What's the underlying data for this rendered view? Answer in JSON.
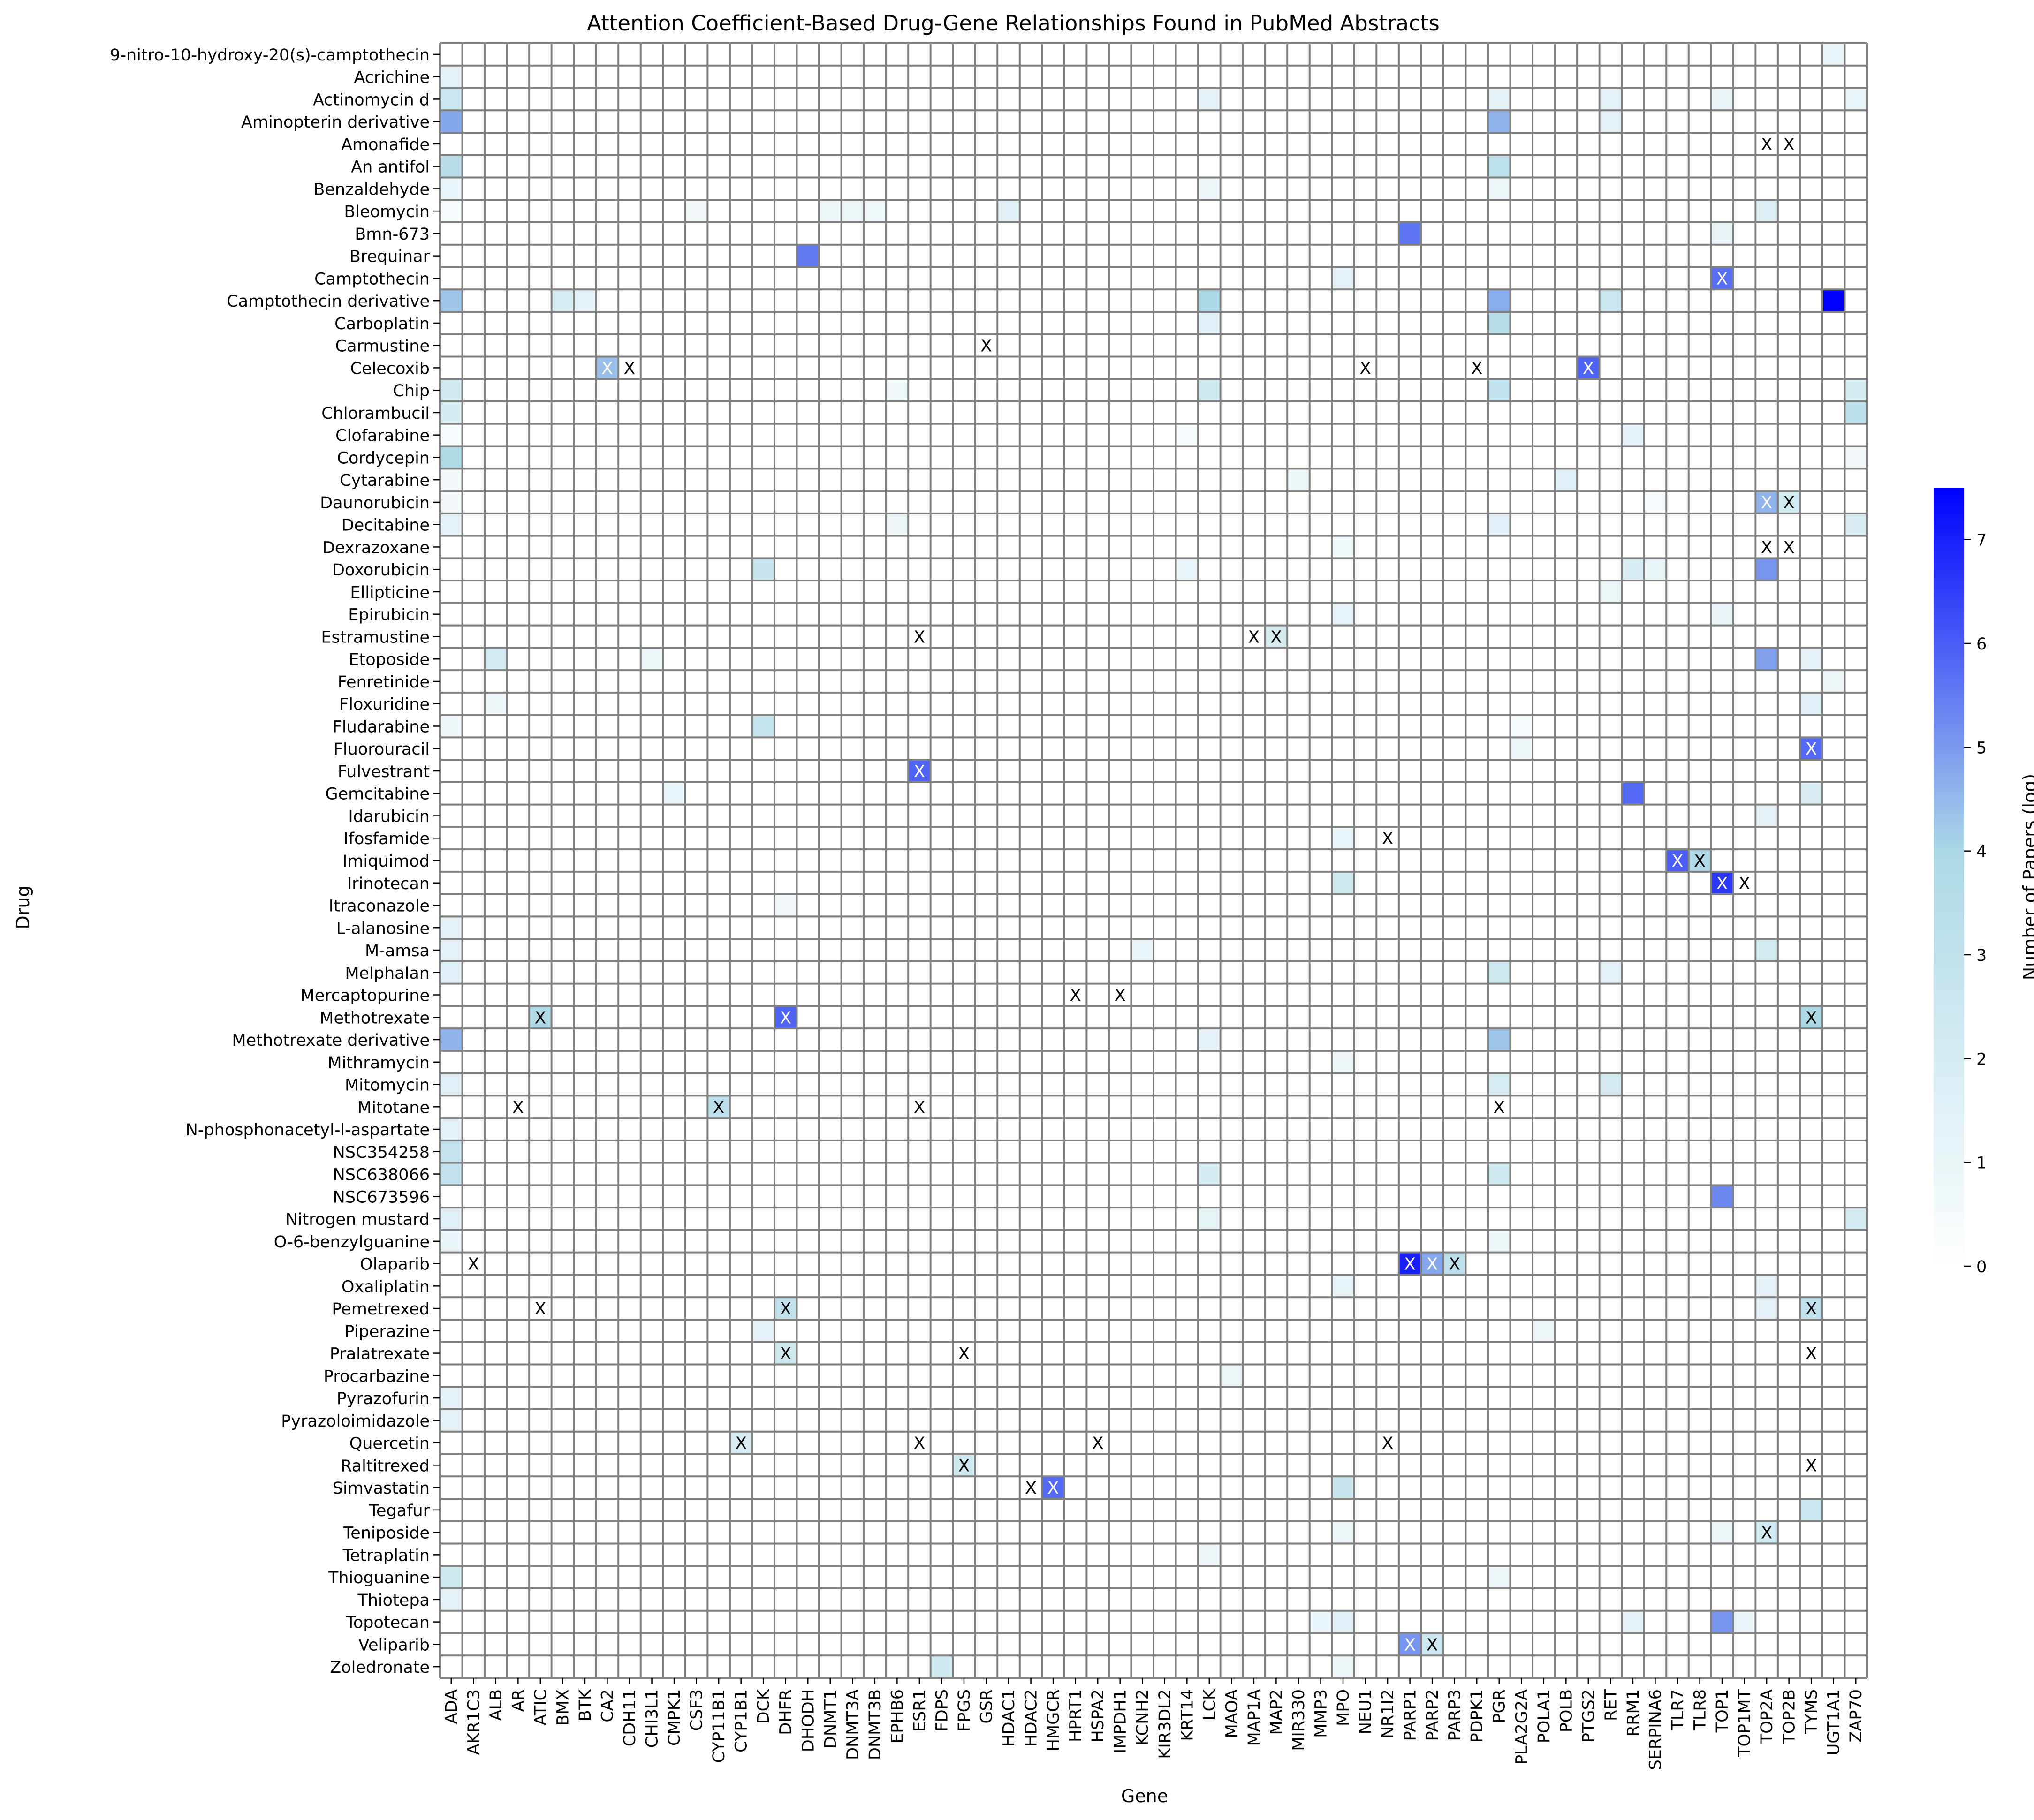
{
  "chart_data": {
    "type": "heatmap",
    "title": "Attention Coefficient-Based Drug-Gene Relationships Found in PubMed Abstracts",
    "xlabel": "Gene",
    "ylabel": "Drug",
    "colorbar": {
      "label": "Number of Papers (log)",
      "range": [
        0,
        7.5
      ],
      "ticks": [
        "0",
        "1",
        "2",
        "3",
        "4",
        "5",
        "6",
        "7"
      ],
      "colors": [
        "#ffffff",
        "#add8e6",
        "#0000ff"
      ],
      "placement": "right"
    },
    "grid": true,
    "genes": [
      "ADA",
      "AKR1C3",
      "ALB",
      "AR",
      "ATIC",
      "BMX",
      "BTK",
      "CA2",
      "CDH11",
      "CHI3L1",
      "CMPK1",
      "CSF3",
      "CYP11B1",
      "CYP1B1",
      "DCK",
      "DHFR",
      "DHODH",
      "DNMT1",
      "DNMT3A",
      "DNMT3B",
      "EPHB6",
      "ESR1",
      "FDPS",
      "FPGS",
      "GSR",
      "HDAC1",
      "HDAC2",
      "HMGCR",
      "HPRT1",
      "HSPA2",
      "IMPDH1",
      "KCNH2",
      "KIR3DL2",
      "KRT14",
      "LCK",
      "MAOA",
      "MAP1A",
      "MAP2",
      "MIR330",
      "MMP3",
      "MPO",
      "NEU1",
      "NR1I2",
      "PARP1",
      "PARP2",
      "PARP3",
      "PDPK1",
      "PGR",
      "PLA2G2A",
      "POLA1",
      "POLB",
      "PTGS2",
      "RET",
      "RRM1",
      "SERPINA6",
      "TLR7",
      "TLR8",
      "TOP1",
      "TOP1MT",
      "TOP2A",
      "TOP2B",
      "TYMS",
      "UGT1A1",
      "ZAP70"
    ],
    "drugs": [
      "9-nitro-10-hydroxy-20(s)-camptothecin",
      "Acrichine",
      "Actinomycin d",
      "Aminopterin derivative",
      "Amonafide",
      "An antifol",
      "Benzaldehyde",
      "Bleomycin",
      "Bmn-673",
      "Brequinar",
      "Camptothecin",
      "Camptothecin derivative",
      "Carboplatin",
      "Carmustine",
      "Celecoxib",
      "Chip",
      "Chlorambucil",
      "Clofarabine",
      "Cordycepin",
      "Cytarabine",
      "Daunorubicin",
      "Decitabine",
      "Dexrazoxane",
      "Doxorubicin",
      "Ellipticine",
      "Epirubicin",
      "Estramustine",
      "Etoposide",
      "Fenretinide",
      "Floxuridine",
      "Fludarabine",
      "Fluorouracil",
      "Fulvestrant",
      "Gemcitabine",
      "Idarubicin",
      "Ifosfamide",
      "Imiquimod",
      "Irinotecan",
      "Itraconazole",
      "L-alanosine",
      "M-amsa",
      "Melphalan",
      "Mercaptopurine",
      "Methotrexate",
      "Methotrexate derivative",
      "Mithramycin",
      "Mitomycin",
      "Mitotane",
      "N-phosphonacetyl-l-aspartate",
      "NSC354258",
      "NSC638066",
      "NSC673596",
      "Nitrogen mustard",
      "O-6-benzylguanine",
      "Olaparib",
      "Oxaliplatin",
      "Pemetrexed",
      "Piperazine",
      "Pralatrexate",
      "Procarbazine",
      "Pyrazofurin",
      "Pyrazoloimidazole",
      "Quercetin",
      "Raltitrexed",
      "Simvastatin",
      "Tegafur",
      "Teniposide",
      "Tetraplatin",
      "Thioguanine",
      "Thiotepa",
      "Topotecan",
      "Veliparib",
      "Zoledronate"
    ],
    "cells": [
      [
        "9-nitro-10-hydroxy-20(s)-camptothecin",
        "UGT1A1",
        1.0,
        false
      ],
      [
        "Acrichine",
        "ADA",
        1.3,
        false
      ],
      [
        "Actinomycin d",
        "ADA",
        2.6,
        false
      ],
      [
        "Actinomycin d",
        "LCK",
        1.3,
        false
      ],
      [
        "Actinomycin d",
        "PGR",
        1.3,
        false
      ],
      [
        "Actinomycin d",
        "RET",
        1.3,
        false
      ],
      [
        "Actinomycin d",
        "TOP1",
        1.0,
        false
      ],
      [
        "Actinomycin d",
        "ZAP70",
        1.0,
        false
      ],
      [
        "Aminopterin derivative",
        "ADA",
        4.8,
        false
      ],
      [
        "Aminopterin derivative",
        "PGR",
        4.6,
        false
      ],
      [
        "Aminopterin derivative",
        "RET",
        1.3,
        false
      ],
      [
        "Amonafide",
        "TOP2A",
        0,
        true
      ],
      [
        "Amonafide",
        "TOP2B",
        0,
        true
      ],
      [
        "An antifol",
        "ADA",
        3.4,
        false
      ],
      [
        "An antifol",
        "PGR",
        3.1,
        false
      ],
      [
        "Benzaldehyde",
        "ADA",
        1.0,
        false
      ],
      [
        "Benzaldehyde",
        "LCK",
        0.9,
        false
      ],
      [
        "Benzaldehyde",
        "PGR",
        0.9,
        false
      ],
      [
        "Bleomycin",
        "ADA",
        0.5,
        false
      ],
      [
        "Bleomycin",
        "CSF3",
        0.6,
        false
      ],
      [
        "Bleomycin",
        "DNMT1",
        0.9,
        false
      ],
      [
        "Bleomycin",
        "DNMT3A",
        0.9,
        false
      ],
      [
        "Bleomycin",
        "DNMT3B",
        0.7,
        false
      ],
      [
        "Bleomycin",
        "HDAC1",
        1.5,
        false
      ],
      [
        "Bleomycin",
        "TOP2A",
        1.7,
        false
      ],
      [
        "Bmn-673",
        "PARP1",
        5.6,
        false
      ],
      [
        "Bmn-673",
        "TOP1",
        1.1,
        false
      ],
      [
        "Brequinar",
        "DHODH",
        5.5,
        false
      ],
      [
        "Camptothecin",
        "MPO",
        1.3,
        false
      ],
      [
        "Camptothecin",
        "TOP1",
        5.7,
        true
      ],
      [
        "Camptothecin derivative",
        "ADA",
        4.3,
        false
      ],
      [
        "Camptothecin derivative",
        "BMX",
        1.9,
        false
      ],
      [
        "Camptothecin derivative",
        "BTK",
        1.3,
        false
      ],
      [
        "Camptothecin derivative",
        "LCK",
        4.0,
        false
      ],
      [
        "Camptothecin derivative",
        "PGR",
        4.7,
        false
      ],
      [
        "Camptothecin derivative",
        "RET",
        2.6,
        false
      ],
      [
        "Camptothecin derivative",
        "UGT1A1",
        7.5,
        false
      ],
      [
        "Carboplatin",
        "LCK",
        1.5,
        false
      ],
      [
        "Carboplatin",
        "PGR",
        3.5,
        false
      ],
      [
        "Carmustine",
        "GSR",
        0,
        true
      ],
      [
        "Celecoxib",
        "CA2",
        4.4,
        true
      ],
      [
        "Celecoxib",
        "CDH11",
        0,
        true
      ],
      [
        "Celecoxib",
        "NEU1",
        0,
        true
      ],
      [
        "Celecoxib",
        "PDPK1",
        0,
        true
      ],
      [
        "Celecoxib",
        "PTGS2",
        5.9,
        true
      ],
      [
        "Chip",
        "ADA",
        2.3,
        false
      ],
      [
        "Chip",
        "EPHB6",
        0.7,
        false
      ],
      [
        "Chip",
        "LCK",
        2.4,
        false
      ],
      [
        "Chip",
        "PGR",
        3.0,
        false
      ],
      [
        "Chip",
        "ZAP70",
        2.0,
        false
      ],
      [
        "Chlorambucil",
        "ADA",
        2.0,
        false
      ],
      [
        "Chlorambucil",
        "ZAP70",
        3.3,
        false
      ],
      [
        "Clofarabine",
        "ADA",
        0.5,
        false
      ],
      [
        "Clofarabine",
        "KRT14",
        0.5,
        false
      ],
      [
        "Clofarabine",
        "RRM1",
        1.3,
        false
      ],
      [
        "Cordycepin",
        "ADA",
        3.8,
        false
      ],
      [
        "Cordycepin",
        "ZAP70",
        0.6,
        false
      ],
      [
        "Cytarabine",
        "ADA",
        0.6,
        false
      ],
      [
        "Cytarabine",
        "MIR330",
        0.8,
        false
      ],
      [
        "Cytarabine",
        "POLB",
        1.6,
        false
      ],
      [
        "Daunorubicin",
        "ADA",
        0.6,
        false
      ],
      [
        "Daunorubicin",
        "SERPINA6",
        0.5,
        false
      ],
      [
        "Daunorubicin",
        "TOP2A",
        4.6,
        true
      ],
      [
        "Daunorubicin",
        "TOP2B",
        2.2,
        true
      ],
      [
        "Decitabine",
        "ADA",
        1.3,
        false
      ],
      [
        "Decitabine",
        "EPHB6",
        0.8,
        false
      ],
      [
        "Decitabine",
        "PGR",
        1.5,
        false
      ],
      [
        "Decitabine",
        "ZAP70",
        1.8,
        false
      ],
      [
        "Dexrazoxane",
        "MPO",
        0.7,
        false
      ],
      [
        "Dexrazoxane",
        "TOP2A",
        0,
        true
      ],
      [
        "Dexrazoxane",
        "TOP2B",
        0,
        true
      ],
      [
        "Doxorubicin",
        "DCK",
        2.7,
        false
      ],
      [
        "Doxorubicin",
        "KRT14",
        1.0,
        false
      ],
      [
        "Doxorubicin",
        "RRM1",
        1.9,
        false
      ],
      [
        "Doxorubicin",
        "SERPINA6",
        1.0,
        false
      ],
      [
        "Doxorubicin",
        "TOP2A",
        5.1,
        false
      ],
      [
        "Ellipticine",
        "RET",
        0.9,
        false
      ],
      [
        "Epirubicin",
        "MPO",
        1.2,
        false
      ],
      [
        "Epirubicin",
        "TOP1",
        1.0,
        false
      ],
      [
        "Estramustine",
        "ESR1",
        0,
        true
      ],
      [
        "Estramustine",
        "MAP1A",
        0,
        true
      ],
      [
        "Estramustine",
        "MAP2",
        2.0,
        true
      ],
      [
        "Etoposide",
        "ALB",
        2.2,
        false
      ],
      [
        "Etoposide",
        "CHI3L1",
        0.9,
        false
      ],
      [
        "Etoposide",
        "TOP2A",
        4.9,
        false
      ],
      [
        "Etoposide",
        "TYMS",
        1.3,
        false
      ],
      [
        "Fenretinide",
        "UGT1A1",
        0.9,
        false
      ],
      [
        "Floxuridine",
        "ALB",
        0.8,
        false
      ],
      [
        "Floxuridine",
        "TYMS",
        1.5,
        false
      ],
      [
        "Fludarabine",
        "ADA",
        0.8,
        false
      ],
      [
        "Fludarabine",
        "DCK",
        2.9,
        false
      ],
      [
        "Fludarabine",
        "PLA2G2A",
        0.5,
        false
      ],
      [
        "Fluorouracil",
        "PLA2G2A",
        0.9,
        false
      ],
      [
        "Fluorouracil",
        "TYMS",
        5.8,
        true
      ],
      [
        "Fulvestrant",
        "ESR1",
        5.9,
        true
      ],
      [
        "Gemcitabine",
        "CMPK1",
        1.0,
        false
      ],
      [
        "Gemcitabine",
        "RRM1",
        5.8,
        false
      ],
      [
        "Gemcitabine",
        "TYMS",
        1.8,
        false
      ],
      [
        "Idarubicin",
        "TOP2A",
        1.3,
        false
      ],
      [
        "Ifosfamide",
        "MPO",
        1.0,
        false
      ],
      [
        "Ifosfamide",
        "NR1I2",
        0,
        true
      ],
      [
        "Imiquimod",
        "TLR7",
        6.0,
        true
      ],
      [
        "Imiquimod",
        "TLR8",
        3.9,
        true
      ],
      [
        "Irinotecan",
        "MPO",
        2.4,
        false
      ],
      [
        "Irinotecan",
        "TOP1",
        6.6,
        true
      ],
      [
        "Irinotecan",
        "TOP1MT",
        0,
        true
      ],
      [
        "Itraconazole",
        "DHFR",
        0.6,
        false
      ],
      [
        "L-alanosine",
        "ADA",
        1.3,
        false
      ],
      [
        "M-amsa",
        "ADA",
        1.3,
        false
      ],
      [
        "M-amsa",
        "KCNH2",
        1.0,
        false
      ],
      [
        "M-amsa",
        "TOP2A",
        2.1,
        false
      ],
      [
        "Melphalan",
        "ADA",
        1.5,
        false
      ],
      [
        "Melphalan",
        "PGR",
        2.4,
        false
      ],
      [
        "Melphalan",
        "RET",
        1.3,
        false
      ],
      [
        "Mercaptopurine",
        "HPRT1",
        0,
        true
      ],
      [
        "Mercaptopurine",
        "IMPDH1",
        0,
        true
      ],
      [
        "Methotrexate",
        "ATIC",
        3.8,
        true
      ],
      [
        "Methotrexate",
        "DHFR",
        5.9,
        true
      ],
      [
        "Methotrexate",
        "TYMS",
        4.0,
        true
      ],
      [
        "Methotrexate derivative",
        "ADA",
        4.6,
        false
      ],
      [
        "Methotrexate derivative",
        "LCK",
        1.3,
        false
      ],
      [
        "Methotrexate derivative",
        "PGR",
        4.3,
        false
      ],
      [
        "Mithramycin",
        "MPO",
        0.8,
        false
      ],
      [
        "Mitomycin",
        "ADA",
        1.5,
        false
      ],
      [
        "Mitomycin",
        "PGR",
        1.9,
        false
      ],
      [
        "Mitomycin",
        "RET",
        2.0,
        false
      ],
      [
        "Mitotane",
        "AR",
        0,
        true
      ],
      [
        "Mitotane",
        "CYP11B1",
        3.3,
        true
      ],
      [
        "Mitotane",
        "ESR1",
        0,
        true
      ],
      [
        "Mitotane",
        "PGR",
        0,
        true
      ],
      [
        "N-phosphonacetyl-l-aspartate",
        "ADA",
        1.3,
        false
      ],
      [
        "NSC354258",
        "ADA",
        2.8,
        false
      ],
      [
        "NSC638066",
        "ADA",
        3.0,
        false
      ],
      [
        "NSC638066",
        "LCK",
        2.0,
        false
      ],
      [
        "NSC638066",
        "PGR",
        2.4,
        false
      ],
      [
        "NSC673596",
        "TOP1",
        5.3,
        false
      ],
      [
        "Nitrogen mustard",
        "ADA",
        1.5,
        false
      ],
      [
        "Nitrogen mustard",
        "LCK",
        1.2,
        false
      ],
      [
        "Nitrogen mustard",
        "ZAP70",
        2.0,
        false
      ],
      [
        "O-6-benzylguanine",
        "ADA",
        1.0,
        false
      ],
      [
        "O-6-benzylguanine",
        "PGR",
        0.9,
        false
      ],
      [
        "Olaparib",
        "AKR1C3",
        0,
        true
      ],
      [
        "Olaparib",
        "PARP1",
        7.0,
        true
      ],
      [
        "Olaparib",
        "PARP2",
        4.8,
        true
      ],
      [
        "Olaparib",
        "PARP3",
        3.1,
        true
      ],
      [
        "Oxaliplatin",
        "MPO",
        1.2,
        false
      ],
      [
        "Oxaliplatin",
        "TOP2A",
        1.3,
        false
      ],
      [
        "Pemetrexed",
        "ATIC",
        0,
        true
      ],
      [
        "Pemetrexed",
        "DHFR",
        3.0,
        true
      ],
      [
        "Pemetrexed",
        "TOP2A",
        1.3,
        false
      ],
      [
        "Pemetrexed",
        "TYMS",
        3.0,
        true
      ],
      [
        "Piperazine",
        "DCK",
        1.3,
        false
      ],
      [
        "Piperazine",
        "POLA1",
        0.8,
        false
      ],
      [
        "Pralatrexate",
        "DHFR",
        2.4,
        true
      ],
      [
        "Pralatrexate",
        "FPGS",
        0,
        true
      ],
      [
        "Pralatrexate",
        "TYMS",
        0,
        true
      ],
      [
        "Procarbazine",
        "MAOA",
        0.9,
        false
      ],
      [
        "Pyrazofurin",
        "ADA",
        1.3,
        false
      ],
      [
        "Pyrazoloimidazole",
        "ADA",
        1.3,
        false
      ],
      [
        "Quercetin",
        "CYP1B1",
        1.8,
        true
      ],
      [
        "Quercetin",
        "ESR1",
        0,
        true
      ],
      [
        "Quercetin",
        "HSPA2",
        0,
        true
      ],
      [
        "Quercetin",
        "NR1I2",
        0,
        true
      ],
      [
        "Raltitrexed",
        "FPGS",
        2.4,
        true
      ],
      [
        "Raltitrexed",
        "TYMS",
        0,
        true
      ],
      [
        "Simvastatin",
        "HDAC2",
        0,
        true
      ],
      [
        "Simvastatin",
        "HMGCR",
        5.8,
        true
      ],
      [
        "Simvastatin",
        "MPO",
        2.7,
        false
      ],
      [
        "Tegafur",
        "TYMS",
        2.6,
        false
      ],
      [
        "Teniposide",
        "MPO",
        0.9,
        false
      ],
      [
        "Teniposide",
        "TOP1",
        0.9,
        false
      ],
      [
        "Teniposide",
        "TOP2A",
        2.2,
        true
      ],
      [
        "Tetraplatin",
        "LCK",
        0.9,
        false
      ],
      [
        "Thioguanine",
        "ADA",
        2.4,
        false
      ],
      [
        "Thioguanine",
        "PGR",
        0.9,
        false
      ],
      [
        "Thiotepa",
        "ADA",
        1.3,
        false
      ],
      [
        "Topotecan",
        "MMP3",
        1.0,
        false
      ],
      [
        "Topotecan",
        "MPO",
        1.5,
        false
      ],
      [
        "Topotecan",
        "RRM1",
        1.3,
        false
      ],
      [
        "Topotecan",
        "TOP1",
        5.1,
        false
      ],
      [
        "Topotecan",
        "TOP1MT",
        1.0,
        false
      ],
      [
        "Veliparib",
        "PARP1",
        5.1,
        true
      ],
      [
        "Veliparib",
        "PARP2",
        2.5,
        true
      ],
      [
        "Zoledronate",
        "FDPS",
        2.4,
        false
      ],
      [
        "Zoledronate",
        "MPO",
        0.9,
        false
      ]
    ]
  }
}
